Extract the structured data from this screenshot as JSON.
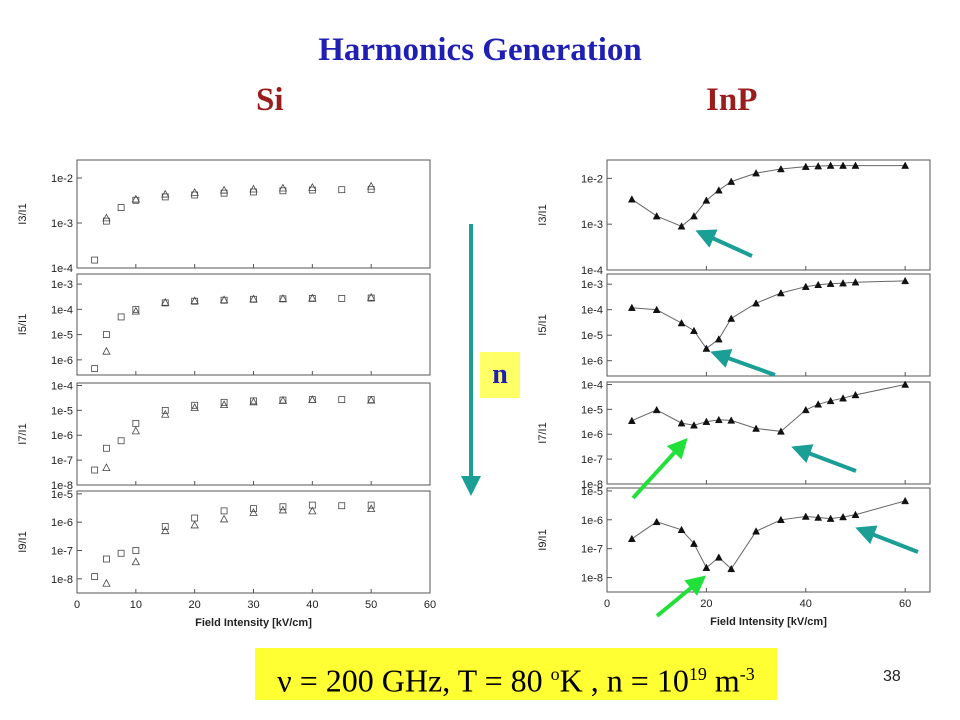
{
  "title": "Harmonics Generation",
  "si_label": "Si",
  "inp_label": "InP",
  "n_label": "n",
  "formula": {
    "nu": "ν",
    "eq1": " = 200 GHz,  T = 80  ",
    "deg": "o",
    "k": "K ,  n = 10",
    "exp": "19",
    "unit": "  m",
    "unit_exp": "-3"
  },
  "page_number": "38",
  "colors": {
    "title": "#1f1fb4",
    "labels": "#9b1c1c",
    "arrow_teal": "#1b9e96",
    "arrow_green": "#22e03a",
    "arrow_down": "#1b9e96",
    "highlight": "#ffff33"
  },
  "chart_data": [
    {
      "type": "scatter",
      "material": "Si",
      "x_ticks": [
        "0",
        "10",
        "20",
        "30",
        "40",
        "50",
        "60"
      ],
      "xlim": [
        0,
        60
      ],
      "xlabel": "Field Intensity [kV/cm]",
      "panels": [
        {
          "ylabel": "I3/I1",
          "ylog_range": [
            -4,
            -1.6
          ],
          "ytick_labels": [
            "1e-4",
            "1e-3",
            "1e-2"
          ],
          "ytick_exps": [
            -4,
            -3,
            -2
          ],
          "series": [
            {
              "marker": "square",
              "x": [
                3,
                5,
                7.5,
                10,
                15,
                20,
                25,
                30,
                35,
                40,
                45,
                50
              ],
              "y": [
                0.00015,
                0.0011,
                0.0022,
                0.0032,
                0.0038,
                0.0042,
                0.0046,
                0.0049,
                0.0052,
                0.0054,
                0.0055,
                0.0056
              ]
            },
            {
              "marker": "triangle",
              "x": [
                5,
                10,
                15,
                20,
                25,
                30,
                35,
                40,
                50
              ],
              "y": [
                0.0013,
                0.0034,
                0.0044,
                0.0048,
                0.0054,
                0.0057,
                0.006,
                0.0062,
                0.0066
              ]
            }
          ]
        },
        {
          "ylabel": "I5/I1",
          "ylog_range": [
            -6.6,
            -2.6
          ],
          "ytick_labels": [
            "1e-6",
            "1e-5",
            "1e-4",
            "1e-3"
          ],
          "ytick_exps": [
            -6,
            -5,
            -4,
            -3
          ],
          "series": [
            {
              "marker": "square",
              "x": [
                3,
                5,
                7.5,
                10,
                15,
                20,
                25,
                30,
                35,
                40,
                45,
                50
              ],
              "y": [
                4.5e-07,
                1e-05,
                5e-05,
                0.0001,
                0.00018,
                0.00021,
                0.00023,
                0.00025,
                0.00026,
                0.00027,
                0.00027,
                0.00028
              ]
            },
            {
              "marker": "triangle",
              "x": [
                5,
                10,
                15,
                20,
                25,
                30,
                35,
                40,
                50
              ],
              "y": [
                2.2e-06,
                8.5e-05,
                0.00019,
                0.00022,
                0.00024,
                0.00026,
                0.00027,
                0.00028,
                0.0003
              ]
            }
          ]
        },
        {
          "ylabel": "I7/I1",
          "ylog_range": [
            -8,
            -3.9
          ],
          "ytick_labels": [
            "1e-8",
            "1e-7",
            "1e-6",
            "1e-5",
            "1e-4"
          ],
          "ytick_exps": [
            -8,
            -7,
            -6,
            -5,
            -4
          ],
          "series": [
            {
              "marker": "square",
              "x": [
                3,
                5,
                7.5,
                10,
                15,
                20,
                25,
                30,
                35,
                40,
                45,
                50
              ],
              "y": [
                4e-08,
                3e-07,
                6e-07,
                3e-06,
                1e-05,
                1.6e-05,
                2.1e-05,
                2.4e-05,
                2.6e-05,
                2.7e-05,
                2.7e-05,
                2.7e-05
              ]
            },
            {
              "marker": "triangle",
              "x": [
                5,
                10,
                15,
                20,
                25,
                30,
                35,
                40,
                50
              ],
              "y": [
                5e-08,
                1.5e-06,
                7e-06,
                1.3e-05,
                1.7e-05,
                2.2e-05,
                2.5e-05,
                2.7e-05,
                2.6e-05
              ]
            }
          ]
        },
        {
          "ylabel": "I9/I1",
          "ylog_range": [
            -8.5,
            -4.9
          ],
          "ytick_labels": [
            "1e-8",
            "1e-7",
            "1e-6",
            "1e-5"
          ],
          "ytick_exps": [
            -8,
            -7,
            -6,
            -5
          ],
          "series": [
            {
              "marker": "square",
              "x": [
                3,
                5,
                7.5,
                10,
                15,
                20,
                25,
                30,
                35,
                40,
                45,
                50
              ],
              "y": [
                1.2e-08,
                5e-08,
                8e-08,
                1e-07,
                7e-07,
                1.4e-06,
                2.5e-06,
                3e-06,
                3.5e-06,
                4e-06,
                3.8e-06,
                4e-06
              ]
            },
            {
              "marker": "triangle",
              "x": [
                5,
                10,
                15,
                20,
                25,
                30,
                35,
                40,
                50
              ],
              "y": [
                7e-09,
                4e-08,
                5e-07,
                8e-07,
                1.3e-06,
                2.2e-06,
                2.7e-06,
                2.5e-06,
                3e-06
              ]
            }
          ]
        }
      ]
    },
    {
      "type": "line",
      "material": "InP",
      "x_ticks": [
        "0",
        "20",
        "40",
        "60"
      ],
      "xlim": [
        0,
        65
      ],
      "xlabel": "Field Intensity [kV/cm]",
      "panels": [
        {
          "ylabel": "I3/I1",
          "ylog_range": [
            -4,
            -1.6
          ],
          "ytick_labels": [
            "1e-4",
            "1e-3",
            "1e-2"
          ],
          "ytick_exps": [
            -4,
            -3,
            -2
          ],
          "series": [
            {
              "marker": "filled-triangle",
              "x": [
                5,
                10,
                15,
                17.5,
                20,
                22.5,
                25,
                30,
                35,
                40,
                42.5,
                45,
                47.5,
                50,
                60
              ],
              "y": [
                0.0035,
                0.0015,
                0.0009,
                0.0015,
                0.0033,
                0.0055,
                0.0085,
                0.013,
                0.016,
                0.018,
                0.0185,
                0.019,
                0.019,
                0.019,
                0.019
              ]
            }
          ]
        },
        {
          "ylabel": "I5/I1",
          "ylog_range": [
            -6.6,
            -2.6
          ],
          "ytick_labels": [
            "1e-6",
            "1e-5",
            "1e-4",
            "1e-3"
          ],
          "ytick_exps": [
            -6,
            -5,
            -4,
            -3
          ],
          "series": [
            {
              "marker": "filled-triangle",
              "x": [
                5,
                10,
                15,
                17.5,
                20,
                22.5,
                25,
                30,
                35,
                40,
                42.5,
                45,
                47.5,
                50,
                60
              ],
              "y": [
                0.00012,
                0.0001,
                3e-05,
                1.5e-05,
                3e-06,
                7e-06,
                4.5e-05,
                0.00018,
                0.00045,
                0.0008,
                0.00095,
                0.00105,
                0.0011,
                0.0012,
                0.00135
              ]
            }
          ]
        },
        {
          "ylabel": "I7/I1",
          "ylog_range": [
            -8,
            -3.9
          ],
          "ytick_labels": [
            "1e-8",
            "1e-7",
            "1e-6",
            "1e-5",
            "1e-4"
          ],
          "ytick_exps": [
            -8,
            -7,
            -6,
            -5,
            -4
          ],
          "series": [
            {
              "marker": "filled-triangle",
              "x": [
                5,
                10,
                15,
                17.5,
                20,
                22.5,
                25,
                30,
                35,
                40,
                42.5,
                45,
                47.5,
                50,
                60
              ],
              "y": [
                3.5e-06,
                9.5e-06,
                2.8e-06,
                2.3e-06,
                3.2e-06,
                3.8e-06,
                3.6e-06,
                1.7e-06,
                1.3e-06,
                9.5e-06,
                1.6e-05,
                2.2e-05,
                2.8e-05,
                3.8e-05,
                0.0001
              ]
            }
          ]
        },
        {
          "ylabel": "I9/I1",
          "ylog_range": [
            -8.5,
            -4.9
          ],
          "ytick_labels": [
            "1e-8",
            "1e-7",
            "1e-6",
            "1e-5"
          ],
          "ytick_exps": [
            -8,
            -7,
            -6,
            -5
          ],
          "series": [
            {
              "marker": "filled-triangle",
              "x": [
                5,
                10,
                15,
                17.5,
                20,
                22.5,
                25,
                30,
                35,
                40,
                42.5,
                45,
                47.5,
                50,
                60
              ],
              "y": [
                2.2e-07,
                8.5e-07,
                4.5e-07,
                1.5e-07,
                2.2e-08,
                5e-08,
                2e-08,
                4e-07,
                1e-06,
                1.3e-06,
                1.2e-06,
                1.1e-06,
                1.25e-06,
                1.5e-06,
                4.5e-06
              ]
            }
          ]
        }
      ]
    }
  ]
}
